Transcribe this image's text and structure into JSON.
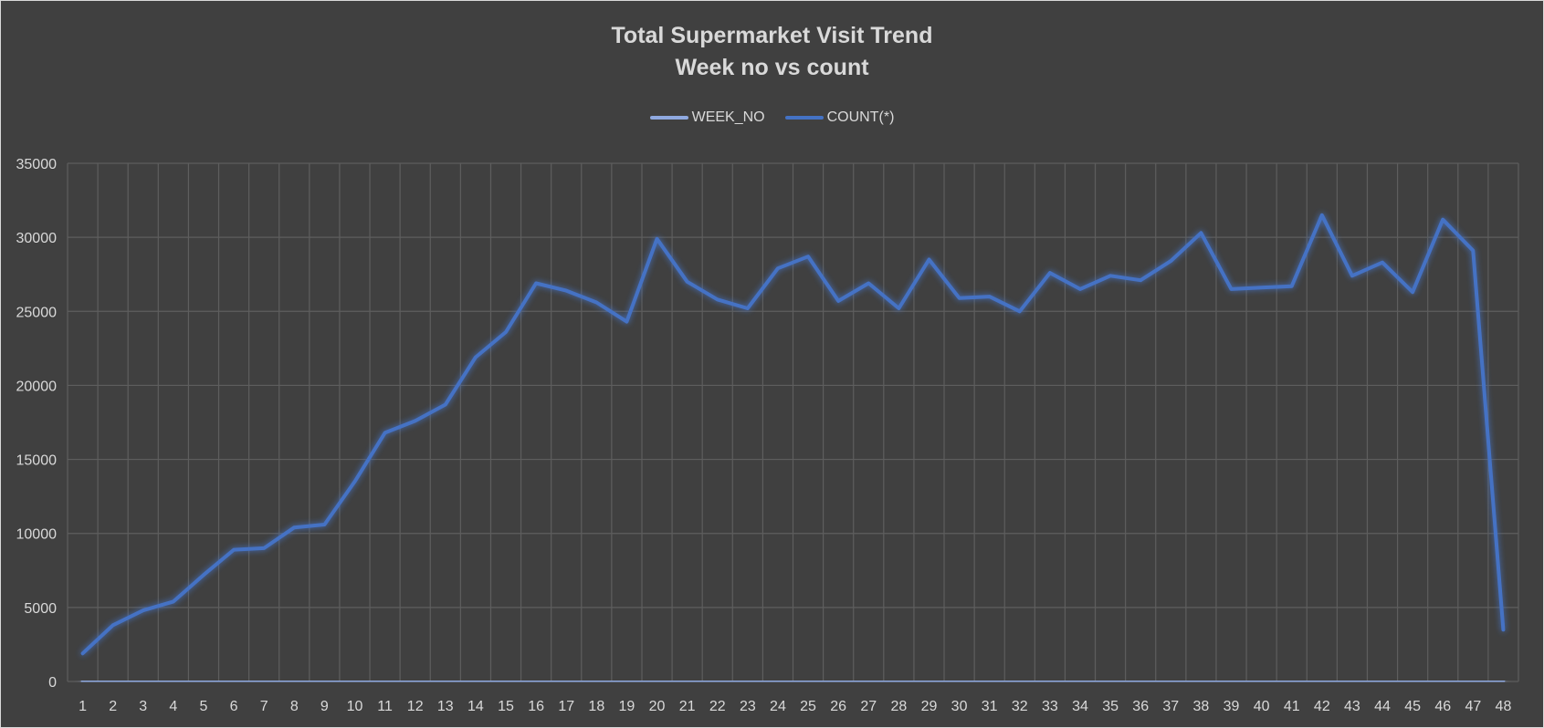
{
  "chart_data": {
    "type": "line",
    "title": "Total Supermarket Visit Trend",
    "subtitle": "Week no vs count",
    "xlabel": "",
    "ylabel": "",
    "ylim": [
      0,
      35000
    ],
    "yticks": [
      "0",
      "5000",
      "10000",
      "15000",
      "20000",
      "25000",
      "30000",
      "35000"
    ],
    "categories": [
      "1",
      "2",
      "3",
      "4",
      "5",
      "6",
      "7",
      "8",
      "9",
      "10",
      "11",
      "12",
      "13",
      "14",
      "15",
      "16",
      "17",
      "18",
      "19",
      "20",
      "21",
      "22",
      "23",
      "24",
      "25",
      "26",
      "27",
      "28",
      "29",
      "30",
      "31",
      "32",
      "33",
      "34",
      "35",
      "36",
      "37",
      "38",
      "39",
      "40",
      "41",
      "42",
      "43",
      "44",
      "45",
      "46",
      "47",
      "48"
    ],
    "grid": true,
    "legend_position": "top",
    "series": [
      {
        "name": "WEEK_NO",
        "color": "#8fa9e0",
        "values": [
          1,
          2,
          3,
          4,
          5,
          6,
          7,
          8,
          9,
          10,
          11,
          12,
          13,
          14,
          15,
          16,
          17,
          18,
          19,
          20,
          21,
          22,
          23,
          24,
          25,
          26,
          27,
          28,
          29,
          30,
          31,
          32,
          33,
          34,
          35,
          36,
          37,
          38,
          39,
          40,
          41,
          42,
          43,
          44,
          45,
          46,
          47,
          48
        ]
      },
      {
        "name": "COUNT(*)",
        "color": "#4472c4",
        "values": [
          1900,
          3800,
          4800,
          5400,
          7200,
          8900,
          9000,
          10400,
          10600,
          13500,
          16800,
          17600,
          18700,
          21900,
          23600,
          26900,
          26400,
          25600,
          24300,
          29900,
          27000,
          25800,
          25200,
          27900,
          28700,
          25700,
          26900,
          25200,
          28500,
          25900,
          26000,
          25000,
          27600,
          26500,
          27400,
          27100,
          28400,
          30300,
          26500,
          26600,
          26700,
          31500,
          27400,
          28300,
          26300,
          31200,
          29100,
          3500
        ]
      }
    ]
  }
}
